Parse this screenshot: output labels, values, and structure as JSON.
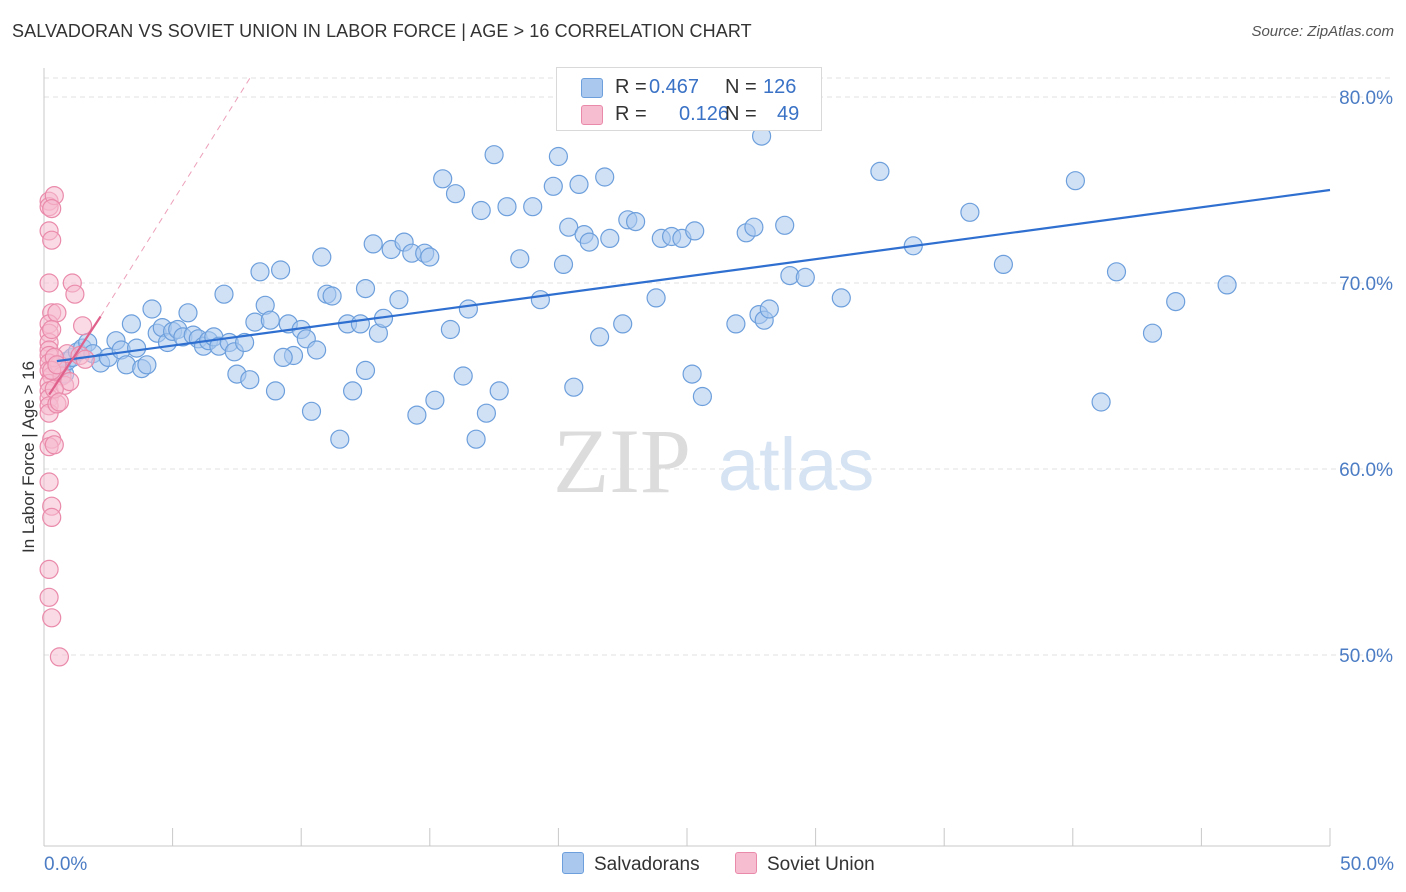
{
  "title": "SALVADORAN VS SOVIET UNION IN LABOR FORCE | AGE > 16 CORRELATION CHART",
  "source": "Source: ZipAtlas.com",
  "watermark": {
    "zip": "ZIP",
    "atlas": "atlas"
  },
  "legend": {
    "rows": [
      {
        "r_label": "R =",
        "r_value": "0.467",
        "n_label": "N =",
        "n_value": "126",
        "color": "#aac8ee",
        "border": "#6d9fdc"
      },
      {
        "r_label": "R =",
        "r_value": "0.126",
        "n_label": "N =",
        "n_value": "49",
        "color": "#f6bcd0",
        "border": "#ea8aaa"
      }
    ]
  },
  "bottom_legend": [
    {
      "label": "Salvadorans",
      "color": "#aac8ee",
      "border": "#6d9fdc"
    },
    {
      "label": "Soviet Union",
      "color": "#f6bcd0",
      "border": "#ea8aaa"
    }
  ],
  "chart_data": {
    "type": "scatter",
    "title": "SALVADORAN VS SOVIET UNION IN LABOR FORCE | AGE > 16 CORRELATION CHART",
    "xlabel": "",
    "ylabel": "In Labor Force | Age > 16",
    "xlim": [
      0,
      50
    ],
    "ylim": [
      40,
      82
    ],
    "x_tick_labels": [
      "0.0%",
      "50.0%"
    ],
    "y_ticks": [
      50,
      60,
      70,
      80
    ],
    "y_tick_labels": [
      "50.0%",
      "60.0%",
      "70.0%",
      "80.0%"
    ],
    "grid": true,
    "series": [
      {
        "name": "Salvadorans",
        "color": "#6d9fdc",
        "fill": "#aac8ee",
        "trend": {
          "x": [
            0.5,
            50
          ],
          "y": [
            65.8,
            75.0
          ],
          "color": "#2f6fd0",
          "style": "solid"
        },
        "points": [
          [
            0.7,
            65.4
          ],
          [
            0.8,
            65.1
          ],
          [
            0.9,
            65.8
          ],
          [
            1.1,
            66.0
          ],
          [
            1.3,
            66.3
          ],
          [
            1.5,
            66.5
          ],
          [
            1.7,
            66.8
          ],
          [
            1.9,
            66.2
          ],
          [
            2.2,
            65.7
          ],
          [
            2.5,
            66.0
          ],
          [
            2.8,
            66.9
          ],
          [
            3.0,
            66.4
          ],
          [
            3.2,
            65.6
          ],
          [
            3.4,
            67.8
          ],
          [
            3.6,
            66.5
          ],
          [
            3.8,
            65.4
          ],
          [
            4.0,
            65.6
          ],
          [
            4.2,
            68.6
          ],
          [
            4.4,
            67.3
          ],
          [
            4.6,
            67.6
          ],
          [
            4.8,
            66.8
          ],
          [
            5.0,
            67.4
          ],
          [
            5.2,
            67.5
          ],
          [
            5.4,
            67.1
          ],
          [
            5.6,
            68.4
          ],
          [
            5.8,
            67.2
          ],
          [
            6.0,
            67.0
          ],
          [
            6.2,
            66.6
          ],
          [
            6.4,
            66.9
          ],
          [
            6.6,
            67.1
          ],
          [
            6.8,
            66.6
          ],
          [
            7.0,
            69.4
          ],
          [
            7.2,
            66.8
          ],
          [
            7.4,
            66.3
          ],
          [
            7.5,
            65.1
          ],
          [
            7.8,
            66.8
          ],
          [
            8.0,
            64.8
          ],
          [
            8.2,
            67.9
          ],
          [
            8.4,
            70.6
          ],
          [
            8.6,
            68.8
          ],
          [
            8.8,
            68.0
          ],
          [
            9.0,
            64.2
          ],
          [
            9.2,
            70.7
          ],
          [
            9.5,
            67.8
          ],
          [
            9.7,
            66.1
          ],
          [
            10.0,
            67.5
          ],
          [
            10.2,
            67.0
          ],
          [
            10.4,
            63.1
          ],
          [
            10.6,
            66.4
          ],
          [
            10.8,
            71.4
          ],
          [
            11.0,
            69.4
          ],
          [
            11.2,
            69.3
          ],
          [
            11.5,
            61.6
          ],
          [
            11.8,
            67.8
          ],
          [
            12.0,
            64.2
          ],
          [
            12.3,
            67.8
          ],
          [
            12.5,
            69.7
          ],
          [
            12.8,
            72.1
          ],
          [
            13.0,
            67.3
          ],
          [
            13.2,
            68.1
          ],
          [
            13.5,
            71.8
          ],
          [
            13.8,
            69.1
          ],
          [
            14.0,
            72.2
          ],
          [
            14.3,
            71.6
          ],
          [
            14.5,
            62.9
          ],
          [
            14.8,
            71.6
          ],
          [
            15.0,
            71.4
          ],
          [
            15.2,
            63.7
          ],
          [
            15.5,
            75.6
          ],
          [
            15.8,
            67.5
          ],
          [
            16.0,
            74.8
          ],
          [
            16.3,
            65.0
          ],
          [
            16.5,
            68.6
          ],
          [
            16.8,
            61.6
          ],
          [
            17.0,
            73.9
          ],
          [
            17.2,
            63.0
          ],
          [
            17.5,
            76.9
          ],
          [
            17.7,
            64.2
          ],
          [
            18.0,
            74.1
          ],
          [
            18.5,
            71.3
          ],
          [
            19.0,
            74.1
          ],
          [
            19.3,
            69.1
          ],
          [
            19.8,
            75.2
          ],
          [
            20.0,
            76.8
          ],
          [
            20.2,
            71.0
          ],
          [
            20.4,
            73.0
          ],
          [
            20.6,
            64.4
          ],
          [
            20.8,
            75.3
          ],
          [
            21.0,
            72.6
          ],
          [
            21.2,
            72.2
          ],
          [
            21.6,
            67.1
          ],
          [
            21.8,
            75.7
          ],
          [
            22.0,
            72.4
          ],
          [
            22.5,
            67.8
          ],
          [
            22.7,
            73.4
          ],
          [
            23.0,
            73.3
          ],
          [
            23.8,
            69.2
          ],
          [
            24.0,
            72.4
          ],
          [
            24.4,
            72.5
          ],
          [
            24.8,
            72.4
          ],
          [
            25.2,
            65.1
          ],
          [
            25.3,
            72.8
          ],
          [
            25.6,
            63.9
          ],
          [
            26.9,
            67.8
          ],
          [
            27.3,
            72.7
          ],
          [
            27.6,
            73.0
          ],
          [
            27.8,
            68.3
          ],
          [
            28.0,
            68.0
          ],
          [
            28.2,
            68.6
          ],
          [
            28.8,
            73.1
          ],
          [
            29.0,
            70.4
          ],
          [
            29.6,
            70.3
          ],
          [
            31.0,
            69.2
          ],
          [
            32.5,
            76.0
          ],
          [
            33.8,
            72.0
          ],
          [
            36.0,
            73.8
          ],
          [
            37.3,
            71.0
          ],
          [
            40.1,
            75.5
          ],
          [
            41.1,
            63.6
          ],
          [
            41.7,
            70.6
          ],
          [
            43.1,
            67.3
          ],
          [
            44.0,
            69.0
          ],
          [
            46.0,
            69.9
          ],
          [
            27.9,
            77.9
          ],
          [
            12.5,
            65.3
          ],
          [
            9.3,
            66.0
          ]
        ]
      },
      {
        "name": "Soviet Union",
        "color": "#ea8aaa",
        "fill": "#f6bcd0",
        "trend": {
          "x": [
            0.2,
            2.2
          ],
          "y": [
            64.0,
            68.2
          ],
          "color": "#e0608c",
          "style": "solid"
        },
        "trend_extension": {
          "x": [
            2.2,
            8.0
          ],
          "y": [
            68.2,
            81.0
          ],
          "style": "dashed"
        },
        "points": [
          [
            0.2,
            74.4
          ],
          [
            0.2,
            74.1
          ],
          [
            0.2,
            72.8
          ],
          [
            0.3,
            72.3
          ],
          [
            0.2,
            70.0
          ],
          [
            0.3,
            68.4
          ],
          [
            0.2,
            67.8
          ],
          [
            0.2,
            67.3
          ],
          [
            0.2,
            66.8
          ],
          [
            0.2,
            66.4
          ],
          [
            0.2,
            66.1
          ],
          [
            0.2,
            65.7
          ],
          [
            0.2,
            65.3
          ],
          [
            0.3,
            65.0
          ],
          [
            0.2,
            64.6
          ],
          [
            0.2,
            64.2
          ],
          [
            0.2,
            63.8
          ],
          [
            0.2,
            63.4
          ],
          [
            0.2,
            63.0
          ],
          [
            0.3,
            61.6
          ],
          [
            0.2,
            61.2
          ],
          [
            0.2,
            59.3
          ],
          [
            0.3,
            58.0
          ],
          [
            0.3,
            57.4
          ],
          [
            0.2,
            54.6
          ],
          [
            0.2,
            53.1
          ],
          [
            0.3,
            52.0
          ],
          [
            0.6,
            49.9
          ],
          [
            0.5,
            68.4
          ],
          [
            0.6,
            65.6
          ],
          [
            0.7,
            65.0
          ],
          [
            0.8,
            64.5
          ],
          [
            0.9,
            66.2
          ],
          [
            1.0,
            64.7
          ],
          [
            1.1,
            70.0
          ],
          [
            1.2,
            69.4
          ],
          [
            1.4,
            66.1
          ],
          [
            1.5,
            67.7
          ],
          [
            1.6,
            65.9
          ],
          [
            0.4,
            74.7
          ],
          [
            0.4,
            61.3
          ],
          [
            0.5,
            63.5
          ],
          [
            0.4,
            64.3
          ],
          [
            0.3,
            67.5
          ],
          [
            0.4,
            66.0
          ],
          [
            0.6,
            63.6
          ],
          [
            0.3,
            65.3
          ],
          [
            0.5,
            65.6
          ],
          [
            0.3,
            74.0
          ]
        ]
      }
    ]
  }
}
